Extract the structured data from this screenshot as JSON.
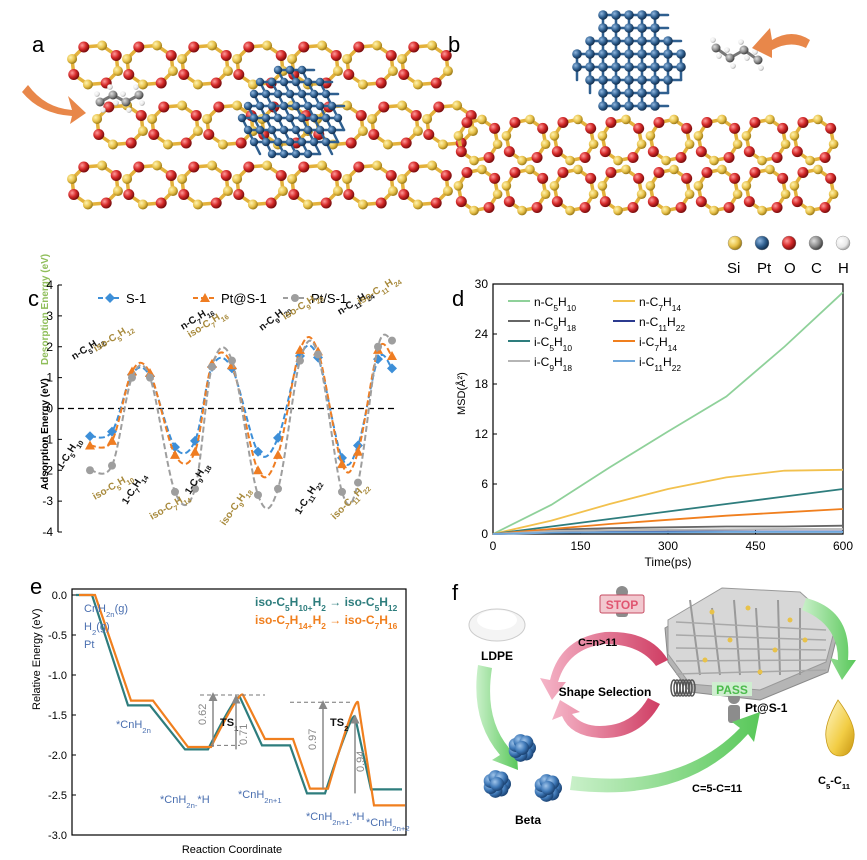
{
  "panel_labels": {
    "a": "a",
    "b": "b",
    "c": "c",
    "d": "d",
    "e": "e",
    "f": "f"
  },
  "element_legend": {
    "labels": [
      "Si",
      "Pt",
      "O",
      "C",
      "H"
    ],
    "colors": [
      "#e8c24a",
      "#2f5f8f",
      "#d62a2a",
      "#8c8c8c",
      "#e8e8e8"
    ]
  },
  "chart_data": [
    {
      "panel": "c",
      "type": "line",
      "ylabel": "Adsorption Energy (eV)",
      "ylabel_right": "Desorption Energy (eV)",
      "ylim": [
        -4,
        4
      ],
      "yticks": [
        "-4",
        "-3",
        "-2",
        "-1",
        "0",
        "1",
        "2",
        "3",
        "4"
      ],
      "series": [
        {
          "name": "S-1",
          "color": "#3d8fd8",
          "marker": "diamond",
          "values": [
            -0.9,
            -0.75,
            1.1,
            1.05,
            -1.25,
            -1.05,
            1.35,
            1.3,
            -1.4,
            -0.95,
            1.7,
            1.65,
            -1.6,
            -1.2,
            1.6,
            1.3
          ]
        },
        {
          "name": "Pt@S-1",
          "color": "#ef7d22",
          "marker": "triangle",
          "values": [
            -1.2,
            -1.05,
            1.2,
            1.15,
            -1.5,
            -1.4,
            1.45,
            1.4,
            -2.0,
            -1.5,
            1.9,
            1.85,
            -1.8,
            -1.4,
            1.9,
            1.7
          ]
        },
        {
          "name": "Pt/S-1",
          "color": "#9e9e9e",
          "marker": "circle",
          "values": [
            -2.0,
            -1.85,
            1.0,
            1.0,
            -2.7,
            -2.6,
            1.35,
            1.55,
            -2.8,
            -2.6,
            1.55,
            1.75,
            -2.7,
            -2.4,
            2.0,
            2.2
          ]
        }
      ],
      "labels_adsorption": [
        "1-C5H10",
        "iso-C5H10",
        "1-C7H14",
        "iso-C7H14",
        "1-C9H18",
        "iso-C9H18",
        "1-C11H22",
        "iso-C11H22"
      ],
      "labels_desorption": [
        "n-C5H12",
        "iso-C5H12",
        "n-C7H16",
        "iso-C7H16",
        "n-C9H20",
        "iso-C9H20",
        "n-C11H24",
        "iso-C11H24"
      ]
    },
    {
      "panel": "d",
      "type": "line",
      "xlabel": "Time(ps)",
      "ylabel": "MSD(Å²)",
      "xlim": [
        0,
        600
      ],
      "ylim": [
        0,
        30
      ],
      "xticks": [
        "0",
        "150",
        "300",
        "450",
        "600"
      ],
      "yticks": [
        "0",
        "6",
        "12",
        "18",
        "24",
        "30"
      ],
      "x": [
        0,
        100,
        200,
        300,
        400,
        500,
        600
      ],
      "series": [
        {
          "name": "n-C5H10",
          "color": "#8fd19a",
          "values": [
            0,
            3.5,
            8.0,
            12.3,
            16.5,
            22.5,
            29.0
          ]
        },
        {
          "name": "n-C7H14",
          "color": "#f2c14e",
          "values": [
            0,
            1.6,
            3.6,
            5.4,
            6.8,
            7.6,
            7.7
          ]
        },
        {
          "name": "n-C9H18",
          "color": "#666666",
          "values": [
            0,
            0.5,
            0.7,
            0.8,
            0.9,
            0.9,
            1.0
          ]
        },
        {
          "name": "n-C11H22",
          "color": "#2b3a8f",
          "values": [
            0,
            0.2,
            0.25,
            0.3,
            0.3,
            0.3,
            0.3
          ]
        },
        {
          "name": "i-C5H10",
          "color": "#2e7d7d",
          "values": [
            0,
            0.9,
            1.8,
            2.7,
            3.6,
            4.5,
            5.4
          ]
        },
        {
          "name": "i-C7H14",
          "color": "#f07f1e",
          "values": [
            0,
            0.6,
            1.2,
            1.7,
            2.2,
            2.6,
            3.0
          ]
        },
        {
          "name": "i-C9H18",
          "color": "#b5b5b5",
          "values": [
            0,
            0.35,
            0.45,
            0.5,
            0.55,
            0.6,
            0.6
          ]
        },
        {
          "name": "i-C11H22",
          "color": "#6fa8dc",
          "values": [
            0,
            0.15,
            0.2,
            0.2,
            0.25,
            0.25,
            0.25
          ]
        }
      ]
    },
    {
      "panel": "e",
      "type": "line",
      "xlabel": "Reaction Coordinate",
      "ylabel": "Relative Energy (eV)",
      "ylim": [
        -3.0,
        0.0
      ],
      "yticks": [
        "0.0",
        "-0.5",
        "-1.0",
        "-1.5",
        "-2.0",
        "-2.5",
        "-3.0"
      ],
      "series": [
        {
          "name": "iso-C5H10+H2→iso-C5H12",
          "color": "#2e7d7d",
          "values": [
            0.0,
            -1.38,
            -1.93,
            -1.28,
            -1.88,
            -2.48,
            -1.52,
            -2.43
          ]
        },
        {
          "name": "iso-C7H14+H2→iso-C7H16",
          "color": "#f07f1e",
          "values": [
            0.0,
            -1.32,
            -1.9,
            -1.25,
            -1.8,
            -2.42,
            -1.34,
            -2.63
          ]
        }
      ],
      "state_labels": [
        "CnH2n(g)",
        "H2(g)",
        "Pt",
        "*CnH2n",
        "*CnH2n-*H",
        "TS1",
        "*CnH2n+1",
        "*CnH2n+1-*H",
        "TS2",
        "*CnH2n+2"
      ],
      "barrier_labels": [
        "0.62",
        "0.71",
        "0.97",
        "0.94"
      ]
    }
  ],
  "panel_f": {
    "ldpe": "LDPE",
    "beta": "Beta",
    "stop": "STOP",
    "pass": "PASS",
    "shape_selection": "Shape Selection",
    "catalyst": "Pt@S-1",
    "long_chain": "C=n>11",
    "short_chain": "C=5-C=11",
    "product": "C5-C11"
  }
}
